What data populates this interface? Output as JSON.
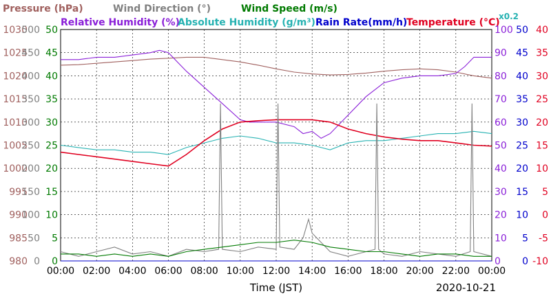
{
  "chart_data": {
    "type": "line",
    "date": "2020-10-21",
    "xlabel": "Time (JST)",
    "x_ticks": [
      "00:00",
      "02:00",
      "04:00",
      "06:00",
      "08:00",
      "10:00",
      "12:00",
      "14:00",
      "16:00",
      "18:00",
      "20:00",
      "22:00",
      "00:00"
    ],
    "grid": true,
    "legend": [
      {
        "text": "Pressure (hPa)",
        "color": "#a0605e"
      },
      {
        "text": "Wind Direction (°)",
        "color": "#808080"
      },
      {
        "text": "Wind Speed (m/s)",
        "color": "#007a00"
      },
      {
        "text": "Relative Humidity (%)",
        "color": "#8a1fd8"
      },
      {
        "text": "Absolute Humidity (g/m³)",
        "color": "#26b2b2"
      },
      {
        "text": "Rain Rate(mm/h)",
        "color": "#0000cc"
      },
      {
        "text": "Temperature (°C)",
        "color": "#e00020"
      },
      {
        "text": "x0.2",
        "color": "#26b2b2"
      }
    ],
    "axes": {
      "pressure": {
        "color": "#a0605e",
        "ticks": [
          "1030",
          "1025",
          "1020",
          "1015",
          "1010",
          "1005",
          "1000",
          "995",
          "990",
          "985",
          "980"
        ]
      },
      "wind_dir": {
        "color": "#808080",
        "ticks": [
          "500",
          "450",
          "400",
          "350",
          "300",
          "250",
          "200",
          "150",
          "100",
          "50",
          "0"
        ]
      },
      "wind_speed": {
        "color": "#007a00",
        "ticks": [
          "50",
          "45",
          "40",
          "35",
          "30",
          "25",
          "20",
          "15",
          "10",
          "5",
          "0"
        ]
      },
      "humidity": {
        "color": "#8a1fd8",
        "ticks": [
          "100",
          "90",
          "80",
          "70",
          "60",
          "50",
          "40",
          "30",
          "20",
          "10",
          "0"
        ]
      },
      "rain": {
        "color": "#0000cc",
        "ticks": [
          "50",
          "45",
          "40",
          "35",
          "30",
          "25",
          "20",
          "15",
          "10",
          "5",
          "0"
        ]
      },
      "temp": {
        "color": "#e00020",
        "ticks": [
          "40",
          "35",
          "30",
          "25",
          "20",
          "15",
          "10",
          "5",
          "0",
          "-5",
          "-10"
        ]
      }
    },
    "series": [
      {
        "name": "Pressure (hPa)",
        "axis": "pressure",
        "color": "#a0605e",
        "x": [
          0,
          1,
          2,
          3,
          4,
          5,
          6,
          7,
          8,
          9,
          10,
          11,
          12,
          13,
          14,
          15,
          16,
          17,
          18,
          19,
          20,
          21,
          22,
          23,
          24
        ],
        "y": [
          1022.3,
          1022.4,
          1022.7,
          1023.0,
          1023.3,
          1023.6,
          1023.8,
          1024.0,
          1024.0,
          1023.5,
          1023.0,
          1022.3,
          1021.5,
          1020.8,
          1020.4,
          1020.2,
          1020.3,
          1020.6,
          1021.0,
          1021.3,
          1021.5,
          1021.3,
          1020.8,
          1020.0,
          1019.5
        ]
      },
      {
        "name": "Relative Humidity (%)",
        "axis": "humidity",
        "color": "#8a1fd8",
        "x": [
          0,
          1,
          2,
          3,
          4,
          5,
          5.5,
          6,
          6.5,
          7,
          8,
          9,
          10,
          10.5,
          11,
          12,
          13,
          13.5,
          14,
          14.5,
          15,
          16,
          17,
          18,
          19,
          20,
          21,
          22,
          22.5,
          23,
          24
        ],
        "y": [
          87,
          87,
          88,
          88,
          89,
          90,
          91,
          90,
          86,
          82,
          75,
          68,
          61,
          60,
          60,
          60,
          58,
          55,
          56,
          53,
          55,
          63,
          71,
          77,
          79,
          80,
          80,
          81,
          84,
          88,
          88
        ]
      },
      {
        "name": "Absolute Humidity (g/m³)",
        "axis": "humidity",
        "color": "#26b2b2",
        "x": [
          0,
          1,
          2,
          3,
          4,
          5,
          6,
          7,
          8,
          9,
          10,
          11,
          12,
          13,
          14,
          15,
          16,
          17,
          18,
          19,
          20,
          21,
          22,
          23,
          24
        ],
        "y": [
          50,
          49,
          48,
          48,
          47,
          47,
          46,
          49,
          51,
          53,
          54,
          53,
          51,
          51,
          50,
          48,
          51,
          52,
          52,
          53,
          54,
          55,
          55,
          56,
          55
        ]
      },
      {
        "name": "Temperature (°C)",
        "axis": "temp",
        "color": "#e00020",
        "x": [
          0,
          1,
          2,
          3,
          4,
          5,
          6,
          7,
          8,
          9,
          10,
          11,
          12,
          13,
          14,
          15,
          16,
          17,
          18,
          19,
          20,
          21,
          22,
          23,
          24
        ],
        "y": [
          13.5,
          13,
          12.5,
          12,
          11.5,
          11,
          10.5,
          13,
          16,
          18.5,
          20,
          20.3,
          20.5,
          20.5,
          20.5,
          20,
          18.5,
          17.5,
          16.8,
          16.3,
          16,
          16,
          15.5,
          15,
          14.8
        ]
      },
      {
        "name": "Wind Direction (°)",
        "axis": "wind_dir",
        "color": "#808080",
        "x": [
          0,
          1,
          2,
          3,
          4,
          5,
          6,
          7,
          8,
          8.8,
          8.9,
          9,
          10,
          11,
          12,
          12.1,
          12.2,
          13,
          13.5,
          13.8,
          14,
          15,
          16,
          17,
          17.5,
          17.6,
          17.7,
          18,
          19,
          20,
          21,
          22,
          22.8,
          22.9,
          23,
          24
        ],
        "y": [
          20,
          10,
          20,
          30,
          15,
          20,
          10,
          25,
          20,
          25,
          340,
          25,
          20,
          30,
          25,
          340,
          30,
          25,
          50,
          90,
          60,
          20,
          10,
          20,
          25,
          340,
          25,
          15,
          10,
          20,
          15,
          10,
          20,
          340,
          20,
          10
        ]
      },
      {
        "name": "Wind Speed (m/s)",
        "axis": "wind_speed",
        "color": "#007a00",
        "x": [
          0,
          1,
          2,
          3,
          4,
          5,
          6,
          7,
          8,
          9,
          10,
          11,
          12,
          13,
          14,
          15,
          16,
          17,
          18,
          19,
          20,
          21,
          22,
          23,
          24
        ],
        "y": [
          1.5,
          1.5,
          1,
          1.5,
          1,
          1.5,
          1,
          2,
          2.5,
          3,
          3.5,
          4,
          4,
          4.5,
          4,
          3,
          2.5,
          2,
          2,
          1.5,
          1,
          1.5,
          1.5,
          1,
          1
        ]
      },
      {
        "name": "Rain Rate(mm/h)",
        "axis": "rain",
        "color": "#0000cc",
        "x": [
          0,
          24
        ],
        "y": [
          0,
          0
        ]
      }
    ]
  }
}
